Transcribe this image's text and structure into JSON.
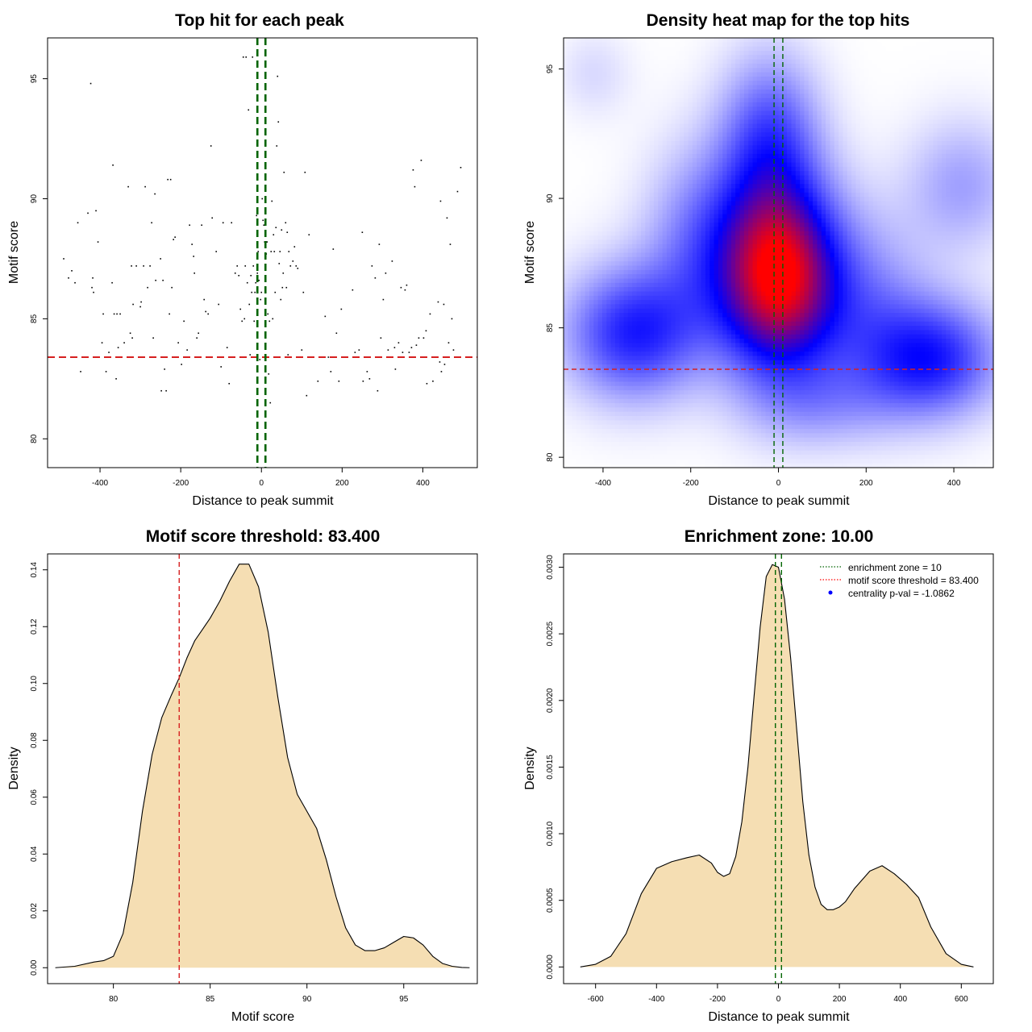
{
  "chart_data": [
    {
      "type": "scatter",
      "id": "p1",
      "title": "Top hit for each peak",
      "xlabel": "Distance to peak summit",
      "ylabel": "Motif score",
      "xlim": [
        -530,
        535
      ],
      "ylim": [
        78.8,
        96.7
      ],
      "xticks": [
        -400,
        -200,
        0,
        200,
        400
      ],
      "yticks": [
        80,
        85,
        90,
        95
      ],
      "threshold_y": 83.4,
      "zone_x": [
        -10,
        10
      ],
      "points": [
        [
          -490,
          87.5
        ],
        [
          -478,
          86.7
        ],
        [
          -470,
          87.0
        ],
        [
          -462,
          86.5
        ],
        [
          -455,
          89.0
        ],
        [
          -448,
          82.8
        ],
        [
          -430,
          89.4
        ],
        [
          -423,
          94.8
        ],
        [
          -420,
          86.3
        ],
        [
          -418,
          86.7
        ],
        [
          -416,
          86.1
        ],
        [
          -410,
          89.5
        ],
        [
          -405,
          88.2
        ],
        [
          -395,
          84.0
        ],
        [
          -392,
          85.2
        ],
        [
          -385,
          82.8
        ],
        [
          -378,
          83.6
        ],
        [
          -370,
          86.5
        ],
        [
          -368,
          91.4
        ],
        [
          -365,
          85.2
        ],
        [
          -360,
          82.5
        ],
        [
          -358,
          85.2
        ],
        [
          -355,
          83.8
        ],
        [
          -350,
          85.2
        ],
        [
          -340,
          84.0
        ],
        [
          -330,
          90.5
        ],
        [
          -325,
          84.4
        ],
        [
          -322,
          87.2
        ],
        [
          -320,
          84.2
        ],
        [
          -318,
          85.6
        ],
        [
          -310,
          87.2
        ],
        [
          -300,
          85.5
        ],
        [
          -298,
          85.7
        ],
        [
          -292,
          87.2
        ],
        [
          -288,
          90.5
        ],
        [
          -282,
          86.3
        ],
        [
          -276,
          87.2
        ],
        [
          -272,
          89.0
        ],
        [
          -268,
          84.2
        ],
        [
          -264,
          90.2
        ],
        [
          -262,
          86.6
        ],
        [
          -250,
          87.5
        ],
        [
          -248,
          82.0
        ],
        [
          -244,
          86.6
        ],
        [
          -240,
          82.9
        ],
        [
          -236,
          82.0
        ],
        [
          -232,
          90.8
        ],
        [
          -228,
          85.2
        ],
        [
          -225,
          90.8
        ],
        [
          -222,
          86.3
        ],
        [
          -218,
          88.3
        ],
        [
          -214,
          88.4
        ],
        [
          -206,
          84.0
        ],
        [
          -198,
          83.1
        ],
        [
          -192,
          84.9
        ],
        [
          -184,
          83.7
        ],
        [
          -178,
          88.9
        ],
        [
          -172,
          88.1
        ],
        [
          -168,
          87.6
        ],
        [
          -166,
          86.9
        ],
        [
          -160,
          84.2
        ],
        [
          -156,
          84.4
        ],
        [
          -148,
          88.9
        ],
        [
          -142,
          85.8
        ],
        [
          -138,
          85.3
        ],
        [
          -132,
          85.2
        ],
        [
          -125,
          92.2
        ],
        [
          -122,
          89.2
        ],
        [
          -112,
          87.8
        ],
        [
          -106,
          85.6
        ],
        [
          -100,
          83.0
        ],
        [
          -95,
          89.0
        ],
        [
          -85,
          83.8
        ],
        [
          -80,
          82.3
        ],
        [
          -74,
          89.0
        ],
        [
          -65,
          86.9
        ],
        [
          -60,
          87.2
        ],
        [
          -56,
          86.8
        ],
        [
          -52,
          85.4
        ],
        [
          -48,
          84.9
        ],
        [
          -45,
          95.9
        ],
        [
          -42,
          85.0
        ],
        [
          -40,
          87.2
        ],
        [
          -38,
          95.9
        ],
        [
          -35,
          86.5
        ],
        [
          -32,
          93.7
        ],
        [
          -30,
          85.6
        ],
        [
          -28,
          83.5
        ],
        [
          -26,
          86.8
        ],
        [
          -24,
          86.1
        ],
        [
          -22,
          95.9
        ],
        [
          -20,
          87.2
        ],
        [
          -18,
          84.9
        ],
        [
          -16,
          86.1
        ],
        [
          -14,
          86.5
        ],
        [
          -12,
          89.3
        ],
        [
          -10,
          86.9
        ],
        [
          -8,
          87.8
        ],
        [
          -6,
          86.6
        ],
        [
          -4,
          83.3
        ],
        [
          -2,
          85.8
        ],
        [
          0,
          86.1
        ],
        [
          2,
          90.0
        ],
        [
          4,
          89.1
        ],
        [
          6,
          88.9
        ],
        [
          8,
          88.2
        ],
        [
          10,
          91.3
        ],
        [
          12,
          87.7
        ],
        [
          14,
          88.2
        ],
        [
          16,
          85.2
        ],
        [
          18,
          82.7
        ],
        [
          20,
          84.9
        ],
        [
          22,
          81.5
        ],
        [
          24,
          87.8
        ],
        [
          26,
          89.9
        ],
        [
          28,
          85.0
        ],
        [
          30,
          88.5
        ],
        [
          32,
          87.8
        ],
        [
          34,
          86.1
        ],
        [
          36,
          88.8
        ],
        [
          38,
          92.2
        ],
        [
          40,
          95.1
        ],
        [
          42,
          93.2
        ],
        [
          44,
          87.3
        ],
        [
          46,
          87.8
        ],
        [
          48,
          85.8
        ],
        [
          50,
          88.7
        ],
        [
          52,
          86.3
        ],
        [
          54,
          86.9
        ],
        [
          56,
          91.1
        ],
        [
          60,
          89.0
        ],
        [
          62,
          86.3
        ],
        [
          64,
          88.6
        ],
        [
          66,
          83.5
        ],
        [
          68,
          87.8
        ],
        [
          72,
          87.2
        ],
        [
          78,
          87.4
        ],
        [
          82,
          88.0
        ],
        [
          86,
          87.2
        ],
        [
          90,
          87.1
        ],
        [
          100,
          83.7
        ],
        [
          104,
          86.1
        ],
        [
          108,
          91.1
        ],
        [
          112,
          81.8
        ],
        [
          118,
          88.5
        ],
        [
          128,
          83.4
        ],
        [
          140,
          82.4
        ],
        [
          158,
          85.1
        ],
        [
          166,
          83.4
        ],
        [
          172,
          82.8
        ],
        [
          178,
          87.9
        ],
        [
          186,
          84.4
        ],
        [
          192,
          82.4
        ],
        [
          198,
          85.4
        ],
        [
          226,
          86.2
        ],
        [
          232,
          83.6
        ],
        [
          242,
          83.7
        ],
        [
          250,
          88.6
        ],
        [
          252,
          82.4
        ],
        [
          262,
          82.8
        ],
        [
          268,
          82.5
        ],
        [
          274,
          87.2
        ],
        [
          282,
          86.7
        ],
        [
          288,
          82.0
        ],
        [
          292,
          88.1
        ],
        [
          296,
          84.2
        ],
        [
          302,
          85.8
        ],
        [
          308,
          86.9
        ],
        [
          314,
          83.7
        ],
        [
          320,
          83.4
        ],
        [
          324,
          87.4
        ],
        [
          330,
          83.8
        ],
        [
          332,
          82.9
        ],
        [
          340,
          84.0
        ],
        [
          346,
          86.3
        ],
        [
          350,
          83.6
        ],
        [
          356,
          86.2
        ],
        [
          360,
          86.4
        ],
        [
          366,
          83.6
        ],
        [
          372,
          83.8
        ],
        [
          376,
          91.2
        ],
        [
          380,
          90.5
        ],
        [
          384,
          83.9
        ],
        [
          390,
          84.2
        ],
        [
          396,
          91.6
        ],
        [
          402,
          84.2
        ],
        [
          408,
          84.5
        ],
        [
          410,
          82.3
        ],
        [
          418,
          85.2
        ],
        [
          425,
          82.4
        ],
        [
          438,
          85.7
        ],
        [
          442,
          83.2
        ],
        [
          444,
          89.9
        ],
        [
          446,
          82.8
        ],
        [
          452,
          85.6
        ],
        [
          454,
          83.1
        ],
        [
          460,
          89.2
        ],
        [
          464,
          84.0
        ],
        [
          468,
          88.1
        ],
        [
          472,
          85.0
        ],
        [
          476,
          83.7
        ],
        [
          486,
          90.3
        ],
        [
          494,
          91.3
        ]
      ]
    },
    {
      "type": "heatmap",
      "id": "p2",
      "title": "Density heat map for the top hits",
      "xlabel": "Distance to peak summit",
      "ylabel": "Motif score",
      "xlim": [
        -490,
        490
      ],
      "ylim": [
        79.6,
        96.2
      ],
      "xticks": [
        -400,
        -200,
        0,
        200,
        400
      ],
      "yticks": [
        80,
        85,
        90,
        95
      ],
      "threshold_y": 83.4,
      "zone_x": [
        -10,
        10
      ],
      "density_blobs": [
        {
          "x": 0,
          "y": 87.0,
          "sx": 95,
          "sy": 2.6,
          "w": 1.0
        },
        {
          "x": -20,
          "y": 92.5,
          "sx": 80,
          "sy": 2.2,
          "w": 0.35
        },
        {
          "x": -330,
          "y": 84.8,
          "sx": 110,
          "sy": 1.8,
          "w": 0.48
        },
        {
          "x": 350,
          "y": 83.8,
          "sx": 110,
          "sy": 1.6,
          "w": 0.48
        },
        {
          "x": -180,
          "y": 88.5,
          "sx": 90,
          "sy": 2.5,
          "w": 0.25
        },
        {
          "x": 200,
          "y": 86.0,
          "sx": 100,
          "sy": 2.5,
          "w": 0.22
        },
        {
          "x": 420,
          "y": 90.5,
          "sx": 90,
          "sy": 1.8,
          "w": 0.2
        },
        {
          "x": -420,
          "y": 94.8,
          "sx": 60,
          "sy": 1.2,
          "w": 0.08
        },
        {
          "x": 100,
          "y": 82.0,
          "sx": 120,
          "sy": 1.2,
          "w": 0.15
        }
      ]
    },
    {
      "type": "area",
      "id": "p3",
      "title": "Motif score threshold: 83.400",
      "xlabel": "Motif score",
      "ylabel": "Density",
      "xlim": [
        76.6,
        98.8
      ],
      "ylim": [
        -0.0056,
        0.1456
      ],
      "xticks": [
        80,
        85,
        90,
        95
      ],
      "yticks": [
        0.0,
        0.02,
        0.04,
        0.06,
        0.08,
        0.1,
        0.12,
        0.14
      ],
      "ytick_labels": [
        "0.00",
        "0.02",
        "0.04",
        "0.06",
        "0.08",
        "0.10",
        "0.12",
        "0.14"
      ],
      "threshold_x": 83.4,
      "x": [
        77.0,
        78.0,
        79.0,
        79.5,
        80.0,
        80.5,
        81.0,
        81.5,
        82.0,
        82.5,
        83.0,
        83.4,
        83.8,
        84.2,
        84.6,
        85.0,
        85.5,
        86.0,
        86.5,
        87.0,
        87.5,
        88.0,
        88.5,
        89.0,
        89.5,
        90.0,
        90.5,
        91.0,
        91.5,
        92.0,
        92.5,
        93.0,
        93.5,
        94.0,
        94.5,
        95.0,
        95.5,
        96.0,
        96.5,
        97.0,
        97.5,
        98.0,
        98.4
      ],
      "y": [
        0.0,
        0.0005,
        0.002,
        0.0025,
        0.004,
        0.012,
        0.03,
        0.055,
        0.075,
        0.088,
        0.096,
        0.102,
        0.109,
        0.115,
        0.119,
        0.123,
        0.129,
        0.136,
        0.142,
        0.142,
        0.134,
        0.118,
        0.095,
        0.074,
        0.061,
        0.055,
        0.049,
        0.038,
        0.025,
        0.014,
        0.008,
        0.006,
        0.006,
        0.007,
        0.009,
        0.011,
        0.0105,
        0.008,
        0.004,
        0.0015,
        0.0005,
        0.0001,
        0.0
      ]
    },
    {
      "type": "area",
      "id": "p4",
      "title": "Enrichment zone: 10.00",
      "xlabel": "Distance to peak summit",
      "ylabel": "Density",
      "xlim": [
        -705,
        705
      ],
      "ylim": [
        -0.000125,
        0.0031
      ],
      "xticks": [
        -600,
        -400,
        -200,
        0,
        200,
        400,
        600
      ],
      "yticks": [
        0.0,
        0.0005,
        0.001,
        0.0015,
        0.002,
        0.0025,
        0.003
      ],
      "ytick_labels": [
        "0.0000",
        "0.0005",
        "0.0010",
        "0.0015",
        "0.0020",
        "0.0025",
        "0.0030"
      ],
      "zone_x": [
        -10,
        10
      ],
      "x": [
        -650,
        -600,
        -550,
        -500,
        -450,
        -400,
        -350,
        -300,
        -260,
        -220,
        -200,
        -180,
        -160,
        -140,
        -120,
        -100,
        -80,
        -60,
        -40,
        -20,
        0,
        20,
        40,
        60,
        80,
        100,
        120,
        140,
        160,
        180,
        200,
        220,
        250,
        300,
        340,
        380,
        420,
        460,
        500,
        550,
        600,
        640
      ],
      "y": [
        0.0,
        2e-05,
        8e-05,
        0.00025,
        0.00055,
        0.00074,
        0.00079,
        0.00082,
        0.00084,
        0.00078,
        0.00071,
        0.00068,
        0.0007,
        0.00083,
        0.00109,
        0.0015,
        0.00203,
        0.00255,
        0.00293,
        0.00302,
        0.003,
        0.00276,
        0.00232,
        0.00178,
        0.00124,
        0.00084,
        0.0006,
        0.00047,
        0.00043,
        0.00043,
        0.00045,
        0.00049,
        0.00059,
        0.00072,
        0.00076,
        0.0007,
        0.00062,
        0.00052,
        0.0003,
        0.0001,
        2e-05,
        0.0
      ],
      "legend": {
        "position": "top-right",
        "entries": [
          {
            "label": "enrichment zone = 10",
            "color": "#006400",
            "style": "dotted-line"
          },
          {
            "label": "motif score threshold = 83.400",
            "color": "#ff0000",
            "style": "dotted-line"
          },
          {
            "label": "centrality p-val = -1.0862",
            "color": "#0000ff",
            "style": "point"
          }
        ]
      }
    }
  ],
  "colors": {
    "threshold": "#d62020",
    "zone": "#006400",
    "fill": "#f5deb3",
    "heat_low": "#ffffff",
    "heat_mid": "#0000ff",
    "heat_high": "#ff0000"
  }
}
